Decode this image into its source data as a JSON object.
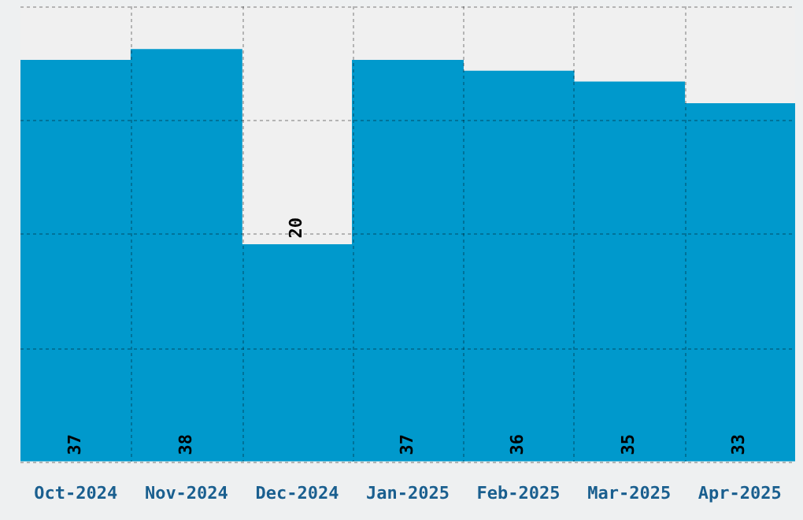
{
  "chart_data": {
    "type": "bar",
    "categories": [
      "Oct-2024",
      "Nov-2024",
      "Dec-2024",
      "Jan-2025",
      "Feb-2025",
      "Mar-2025",
      "Apr-2025"
    ],
    "values": [
      37,
      38,
      20,
      37,
      36,
      35,
      33
    ],
    "color": "#0099cc",
    "ylim": [
      0,
      42
    ],
    "tick_labels": "x",
    "grid": true,
    "data_labels": true
  }
}
